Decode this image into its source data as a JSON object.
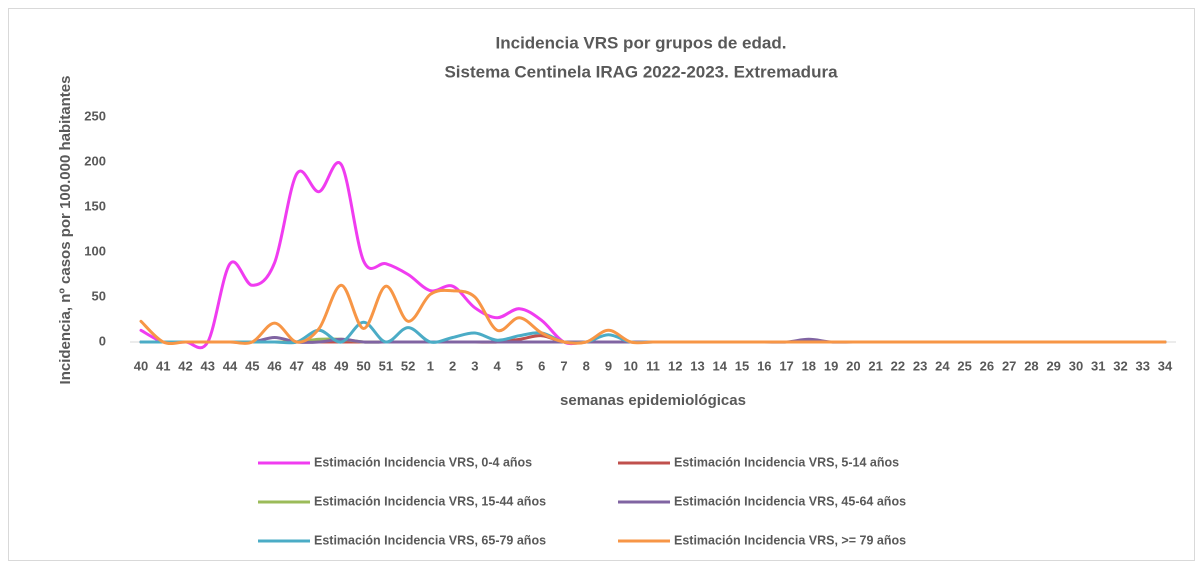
{
  "chart_data": {
    "type": "line",
    "title": [
      "Incidencia VRS por grupos de edad.",
      "Sistema Centinela IRAG 2022-2023. Extremadura"
    ],
    "y_label": "Incidencia, nº casos por 100.000 habitantes",
    "x_label": "semanas epidemiológicas",
    "categories": [
      "40",
      "41",
      "42",
      "43",
      "44",
      "45",
      "46",
      "47",
      "48",
      "49",
      "50",
      "51",
      "52",
      "1",
      "2",
      "3",
      "4",
      "5",
      "6",
      "7",
      "8",
      "9",
      "10",
      "11",
      "12",
      "13",
      "14",
      "15",
      "16",
      "17",
      "18",
      "19",
      "20",
      "21",
      "22",
      "23",
      "24",
      "25",
      "26",
      "27",
      "28",
      "29",
      "30",
      "31",
      "32",
      "33",
      "34"
    ],
    "ylim": [
      0,
      250
    ],
    "yticks": [
      0,
      50,
      100,
      150,
      200,
      250
    ],
    "grid": false,
    "smooth": true,
    "series": [
      {
        "name": "Estimación Incidencia VRS, 0-4 años",
        "color": "#f03cf0",
        "values": [
          13,
          0,
          0,
          0,
          87,
          63,
          88,
          187,
          167,
          197,
          90,
          87,
          75,
          57,
          62,
          38,
          27,
          37,
          24,
          0,
          0,
          0,
          0,
          0,
          0,
          0,
          0,
          0,
          0,
          0,
          0,
          0,
          0,
          0,
          0,
          0,
          0,
          0,
          0,
          0,
          0,
          0,
          0,
          0,
          0,
          0,
          0
        ]
      },
      {
        "name": "Estimación Incidencia VRS, 5-14 años",
        "color": "#c0504d",
        "values": [
          0,
          0,
          0,
          0,
          0,
          0,
          0,
          0,
          0,
          0,
          0,
          0,
          0,
          0,
          0,
          0,
          0,
          3,
          7,
          0,
          0,
          0,
          0,
          0,
          0,
          0,
          0,
          0,
          0,
          0,
          0,
          0,
          0,
          0,
          0,
          0,
          0,
          0,
          0,
          0,
          0,
          0,
          0,
          0,
          0,
          0,
          0
        ]
      },
      {
        "name": "Estimación Incidencia VRS, 15-44 años",
        "color": "#9bbb59",
        "values": [
          0,
          0,
          0,
          0,
          0,
          0,
          0,
          0,
          3,
          3,
          0,
          0,
          0,
          0,
          0,
          0,
          0,
          0,
          0,
          0,
          0,
          0,
          0,
          0,
          0,
          0,
          0,
          0,
          0,
          0,
          0,
          0,
          0,
          0,
          0,
          0,
          0,
          0,
          0,
          0,
          0,
          0,
          0,
          0,
          0,
          0,
          0
        ]
      },
      {
        "name": "Estimación Incidencia VRS, 45-64 años",
        "color": "#8064a2",
        "values": [
          0,
          0,
          0,
          0,
          0,
          0,
          5,
          0,
          0,
          3,
          0,
          0,
          0,
          0,
          0,
          0,
          0,
          0,
          0,
          0,
          0,
          0,
          0,
          0,
          0,
          0,
          0,
          0,
          0,
          0,
          3,
          0,
          0,
          0,
          0,
          0,
          0,
          0,
          0,
          0,
          0,
          0,
          0,
          0,
          0,
          0,
          0
        ]
      },
      {
        "name": "Estimación Incidencia VRS, 65-79 años",
        "color": "#4bacc6",
        "values": [
          0,
          0,
          0,
          0,
          0,
          0,
          0,
          0,
          13,
          0,
          22,
          0,
          16,
          0,
          5,
          10,
          2,
          7,
          10,
          0,
          0,
          8,
          0,
          0,
          0,
          0,
          0,
          0,
          0,
          0,
          0,
          0,
          0,
          0,
          0,
          0,
          0,
          0,
          0,
          0,
          0,
          0,
          0,
          0,
          0,
          0,
          0
        ]
      },
      {
        "name": "Estimación Incidencia VRS, >= 79 años",
        "color": "#f79646",
        "values": [
          23,
          0,
          0,
          0,
          0,
          0,
          21,
          0,
          15,
          63,
          15,
          62,
          23,
          53,
          57,
          50,
          13,
          27,
          10,
          0,
          0,
          13,
          0,
          0,
          0,
          0,
          0,
          0,
          0,
          0,
          0,
          0,
          0,
          0,
          0,
          0,
          0,
          0,
          0,
          0,
          0,
          0,
          0,
          0,
          0,
          0,
          0
        ]
      }
    ]
  }
}
